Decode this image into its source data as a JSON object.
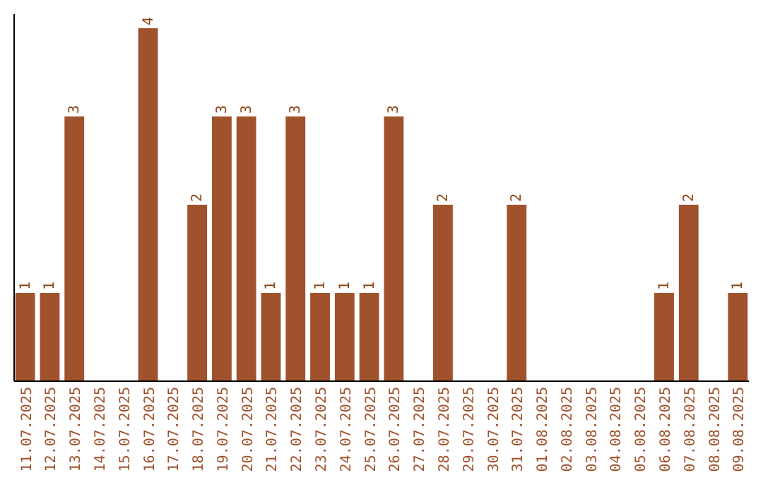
{
  "chart_data": {
    "type": "bar",
    "categories": [
      "11.07.2025",
      "12.07.2025",
      "13.07.2025",
      "14.07.2025",
      "15.07.2025",
      "16.07.2025",
      "17.07.2025",
      "18.07.2025",
      "19.07.2025",
      "20.07.2025",
      "21.07.2025",
      "22.07.2025",
      "23.07.2025",
      "24.07.2025",
      "25.07.2025",
      "26.07.2025",
      "27.07.2025",
      "28.07.2025",
      "29.07.2025",
      "30.07.2025",
      "31.07.2025",
      "01.08.2025",
      "02.08.2025",
      "03.08.2025",
      "04.08.2025",
      "05.08.2025",
      "06.08.2025",
      "07.08.2025",
      "08.08.2025",
      "09.08.2025"
    ],
    "values": [
      1,
      1,
      3,
      0,
      0,
      4,
      0,
      2,
      3,
      3,
      1,
      3,
      1,
      1,
      1,
      3,
      0,
      2,
      0,
      0,
      2,
      0,
      0,
      0,
      0,
      0,
      1,
      2,
      0,
      1
    ],
    "value_labels": [
      "1",
      "1",
      "3",
      null,
      null,
      "4",
      null,
      "2",
      "3",
      "3",
      "1",
      "3",
      "1",
      "1",
      "1",
      "3",
      null,
      "2",
      null,
      null,
      "2",
      null,
      null,
      null,
      null,
      null,
      "1",
      "2",
      null,
      "1"
    ],
    "color": "#a0522d",
    "ylim": [
      0,
      4.16
    ],
    "tick_labels": "x"
  }
}
